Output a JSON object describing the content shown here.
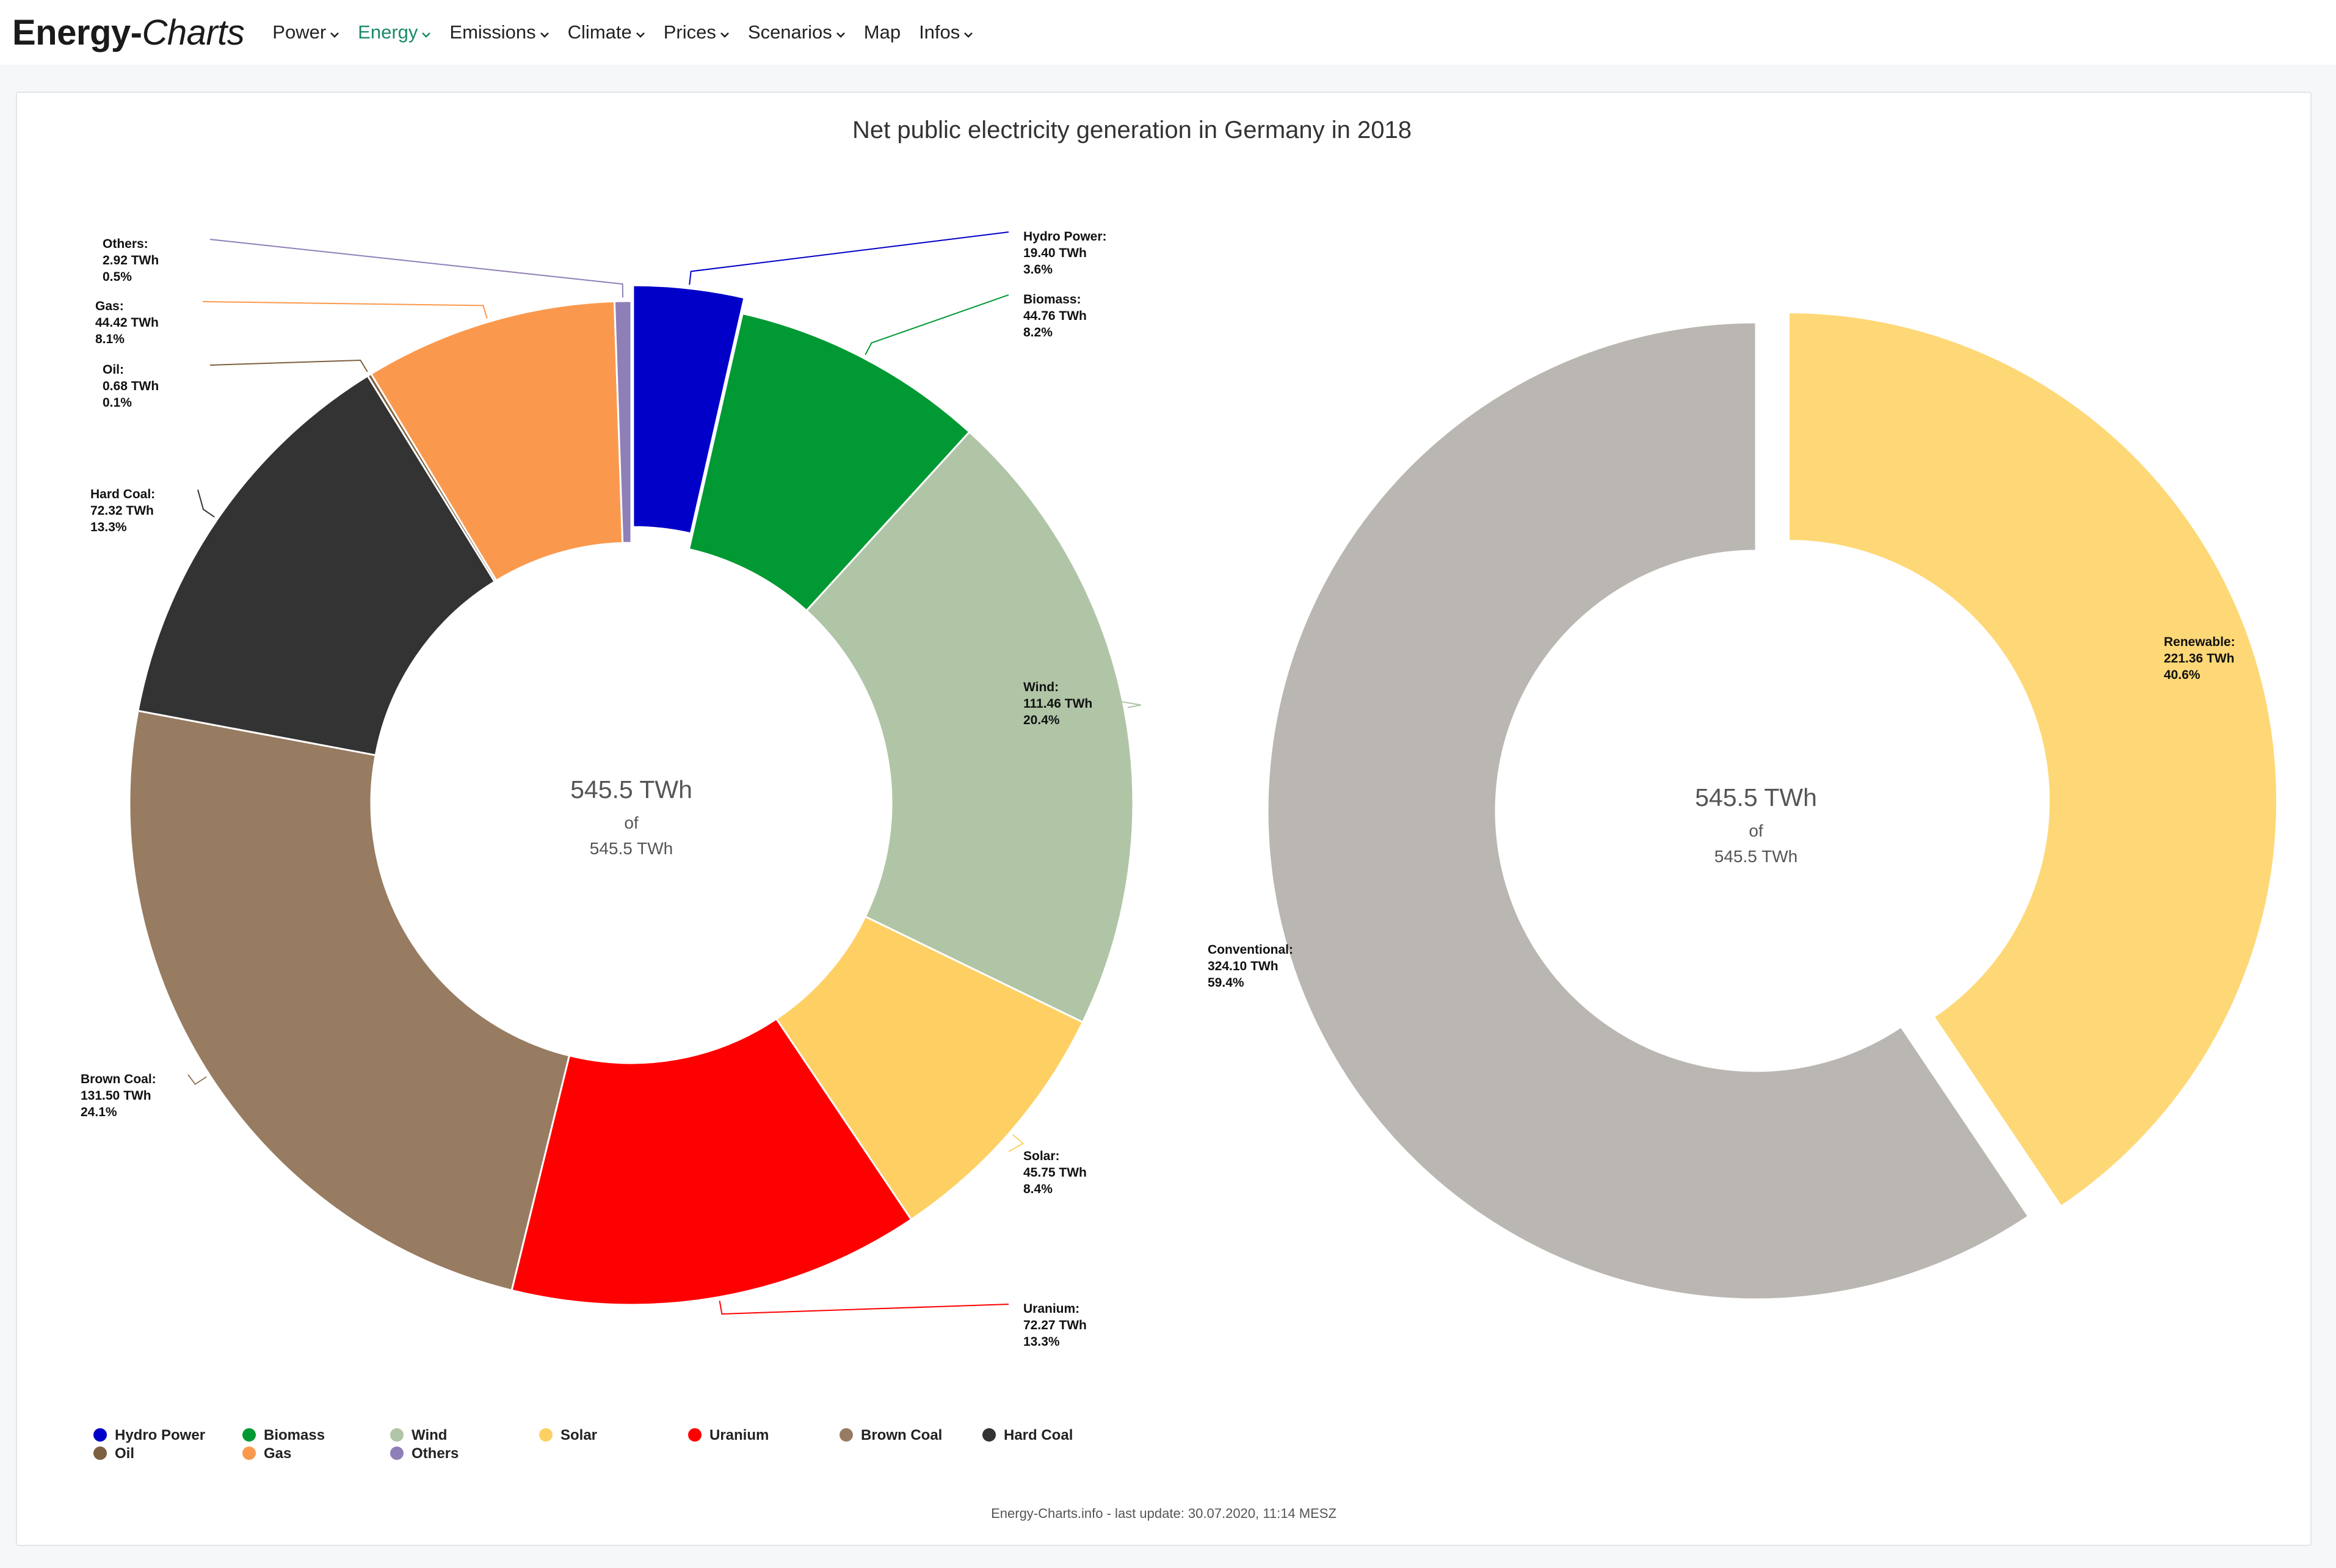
{
  "navbar": {
    "brand_bold": "Energy-",
    "brand_italic": "Charts",
    "items": [
      {
        "label": "Power",
        "active": false
      },
      {
        "label": "Energy",
        "active": true
      },
      {
        "label": "Emissions",
        "active": false
      },
      {
        "label": "Climate",
        "active": false
      },
      {
        "label": "Prices",
        "active": false
      },
      {
        "label": "Scenarios",
        "active": false
      },
      {
        "label": "Map",
        "active": false
      },
      {
        "label": "Infos",
        "active": false
      }
    ]
  },
  "chart_data": [
    {
      "type": "pie",
      "title": "Net public electricity generation in Germany in 2018",
      "center_text": {
        "value": "545.5 TWh",
        "of": "of",
        "total": "545.5 TWh"
      },
      "unit": "TWh",
      "slices": [
        {
          "name": "Hydro Power",
          "value": 19.4,
          "percent": "3.6%",
          "color": "#0000c8"
        },
        {
          "name": "Biomass",
          "value": 44.76,
          "percent": "8.2%",
          "color": "#009933"
        },
        {
          "name": "Wind",
          "value": 111.46,
          "percent": "20.4%",
          "color": "#b0c5a6"
        },
        {
          "name": "Solar",
          "value": 45.75,
          "percent": "8.4%",
          "color": "#fed064"
        },
        {
          "name": "Uranium",
          "value": 72.27,
          "percent": "13.3%",
          "color": "#ff0000"
        },
        {
          "name": "Brown Coal",
          "value": 131.5,
          "percent": "24.1%",
          "color": "#977c62"
        },
        {
          "name": "Hard Coal",
          "value": 72.32,
          "percent": "13.3%",
          "color": "#333333"
        },
        {
          "name": "Oil",
          "value": 0.68,
          "percent": "0.1%",
          "color": "#7d6040"
        },
        {
          "name": "Gas",
          "value": 44.42,
          "percent": "8.1%",
          "color": "#fa994d"
        },
        {
          "name": "Others",
          "value": 2.92,
          "percent": "0.5%",
          "color": "#8f7fb8"
        }
      ]
    },
    {
      "type": "pie",
      "center_text": {
        "value": "545.5 TWh",
        "of": "of",
        "total": "545.5 TWh"
      },
      "unit": "TWh",
      "slices": [
        {
          "name": "Renewable",
          "value": 221.36,
          "percent": "40.6%",
          "color": "#fed876"
        },
        {
          "name": "Conventional",
          "value": 324.1,
          "percent": "59.4%",
          "color": "#bab6b2"
        }
      ]
    }
  ],
  "legend": [
    "Hydro Power",
    "Biomass",
    "Wind",
    "Solar",
    "Uranium",
    "Brown Coal",
    "Hard Coal",
    "Oil",
    "Gas",
    "Others"
  ],
  "footer": "Energy-Charts.info - last update: 30.07.2020, 11:14 MESZ"
}
